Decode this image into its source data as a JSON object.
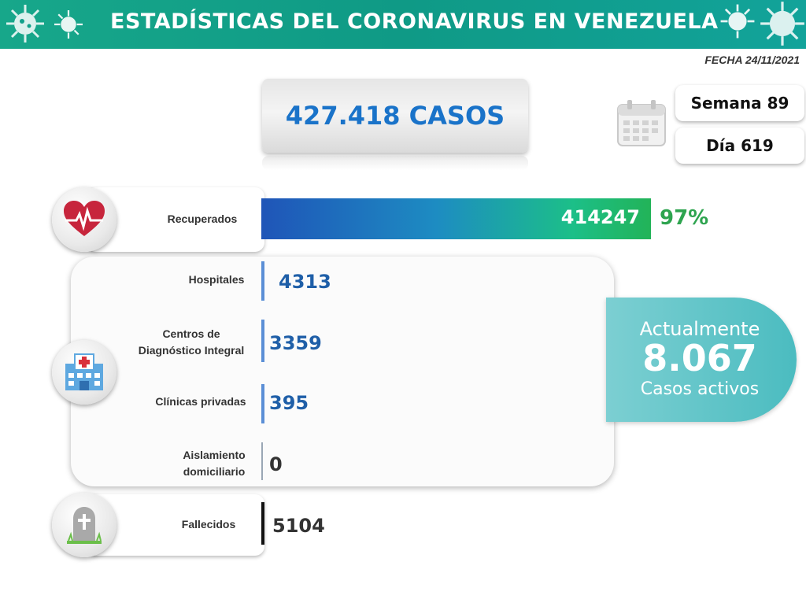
{
  "header": {
    "title": "ESTADÍSTICAS DEL CORONAVIRUS EN VENEZUELA",
    "date": "FECHA 24/11/2021"
  },
  "summary": {
    "total_cases": "427.418 CASOS",
    "week": "Semana 89",
    "day": "Día 619"
  },
  "recovered": {
    "label": "Recuperados",
    "value": "414247",
    "percent": "97%"
  },
  "hospitalization": {
    "rows": [
      {
        "label": "Hospitales",
        "value": "4313"
      },
      {
        "label": "Centros de Diagnóstico Integral",
        "value": "3359"
      },
      {
        "label": "Clínicas privadas",
        "value": "395"
      },
      {
        "label": "Aislamiento domiciliario",
        "value": "0"
      }
    ]
  },
  "active": {
    "line1": "Actualmente",
    "number": "8.067",
    "line3": "Casos activos"
  },
  "deaths": {
    "label": "Fallecidos",
    "value": "5104"
  },
  "icons": {
    "virus": "virus-icon",
    "calendar": "calendar-icon",
    "heart": "heart-pulse-icon",
    "hospital": "hospital-icon",
    "tombstone": "tombstone-icon"
  },
  "colors": {
    "banner": "#12a08a",
    "cases_text": "#1a73c9",
    "recovered_pct": "#2ea44f",
    "active_bg": "#4bbcc0",
    "hospital_values": "#1f5fa8"
  }
}
